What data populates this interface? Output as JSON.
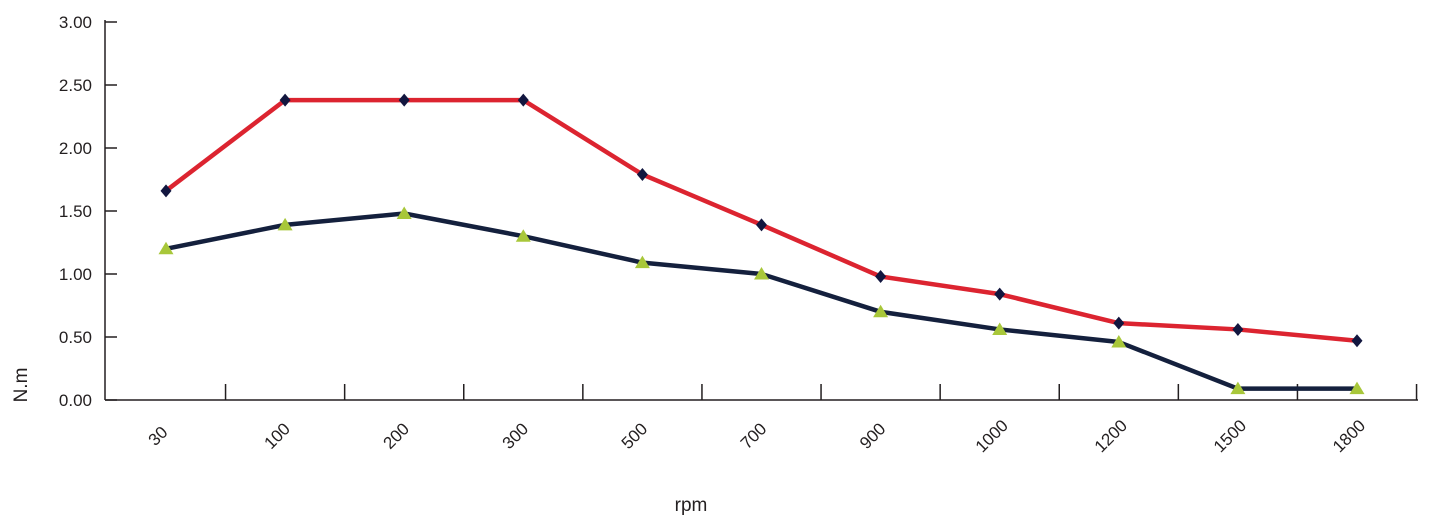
{
  "chart_data": {
    "type": "line",
    "categories": [
      "30",
      "100",
      "200",
      "300",
      "500",
      "700",
      "900",
      "1000",
      "1200",
      "1500",
      "1800"
    ],
    "series": [
      {
        "color": "#dc2430",
        "marker": "diamond",
        "marker_color": "#12163f",
        "values": [
          1.66,
          2.38,
          2.38,
          2.38,
          1.79,
          1.39,
          0.98,
          0.84,
          0.61,
          0.56,
          0.47
        ]
      },
      {
        "color": "#14203d",
        "marker": "triangle",
        "marker_color": "#a8c73a",
        "values": [
          1.2,
          1.39,
          1.48,
          1.3,
          1.09,
          1.0,
          0.7,
          0.56,
          0.46,
          0.09,
          0.09
        ]
      }
    ],
    "xlabel": "rpm",
    "ylabel": "N.m",
    "ylim": [
      0,
      3
    ],
    "yticks": [
      "0.00",
      "0.50",
      "1.00",
      "1.50",
      "2.00",
      "2.50",
      "3.00"
    ],
    "grid": false,
    "legend": "none"
  }
}
